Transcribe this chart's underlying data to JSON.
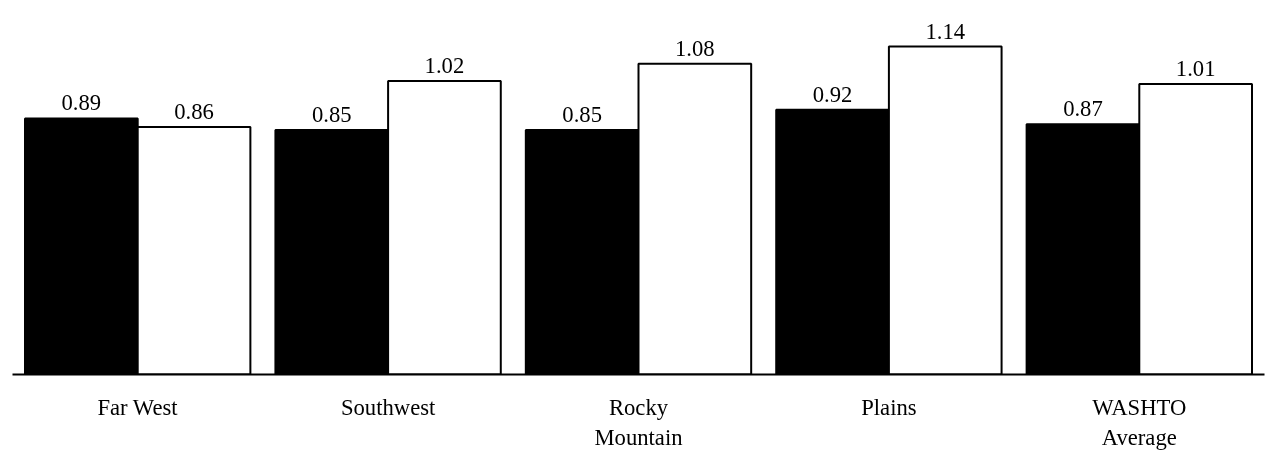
{
  "chart_data": {
    "type": "bar",
    "categories": [
      "Far West",
      "Southwest",
      "Rocky\nMountain",
      "Plains",
      "WASHTO\nAverage"
    ],
    "series": [
      {
        "color": "#000000",
        "values": [
          0.89,
          0.85,
          0.85,
          0.92,
          0.87
        ]
      },
      {
        "color": "#ffffff",
        "values": [
          0.86,
          1.02,
          1.08,
          1.14,
          1.01
        ]
      }
    ],
    "data_labels": true,
    "grid": false,
    "tick_labels": "x"
  }
}
